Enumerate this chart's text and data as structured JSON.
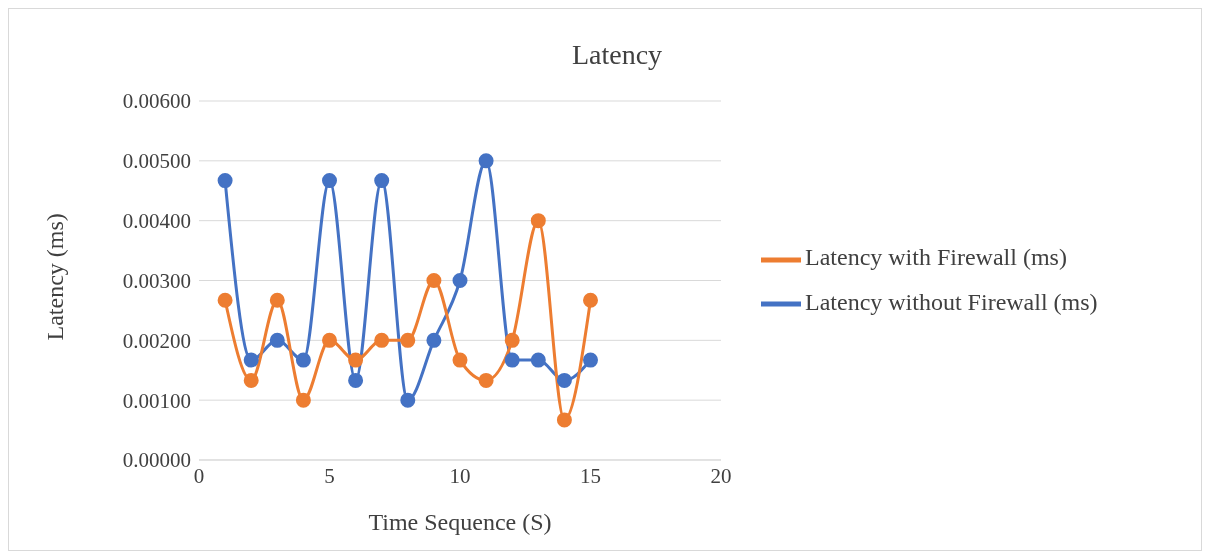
{
  "chart_data": {
    "type": "line",
    "title": "Latency",
    "xlabel": "Time Sequence (S)",
    "ylabel": "Latency (ms)",
    "x": [
      1,
      2,
      3,
      4,
      5,
      6,
      7,
      8,
      9,
      10,
      11,
      12,
      13,
      14,
      15
    ],
    "series": [
      {
        "name": "Latency without Firewall (ms)",
        "color": "#4472c4",
        "values": [
          0.00467,
          0.00167,
          0.002,
          0.00167,
          0.00467,
          0.00133,
          0.00467,
          0.001,
          0.002,
          0.003,
          0.005,
          0.00167,
          0.00167,
          0.00133,
          0.00167
        ]
      },
      {
        "name": "Latency with Firewall (ms)",
        "color": "#ed7d31",
        "values": [
          0.00267,
          0.00133,
          0.00267,
          0.001,
          0.002,
          0.00167,
          0.002,
          0.002,
          0.003,
          0.00167,
          0.00133,
          0.002,
          0.004,
          0.00067,
          0.00267
        ]
      }
    ],
    "xlim": [
      0,
      20
    ],
    "xticks": [
      0,
      5,
      10,
      15,
      20
    ],
    "ylim": [
      0,
      0.006
    ],
    "yticks": [
      {
        "value": 0,
        "label": "0.00000"
      },
      {
        "value": 0.001,
        "label": "0.00100"
      },
      {
        "value": 0.002,
        "label": "0.00200"
      },
      {
        "value": 0.003,
        "label": "0.00300"
      },
      {
        "value": 0.004,
        "label": "0.00400"
      },
      {
        "value": 0.005,
        "label": "0.00500"
      },
      {
        "value": 0.006,
        "label": "0.00600"
      }
    ],
    "grid": "y",
    "legend": "right",
    "marker": "circle",
    "line_style": "solid"
  }
}
